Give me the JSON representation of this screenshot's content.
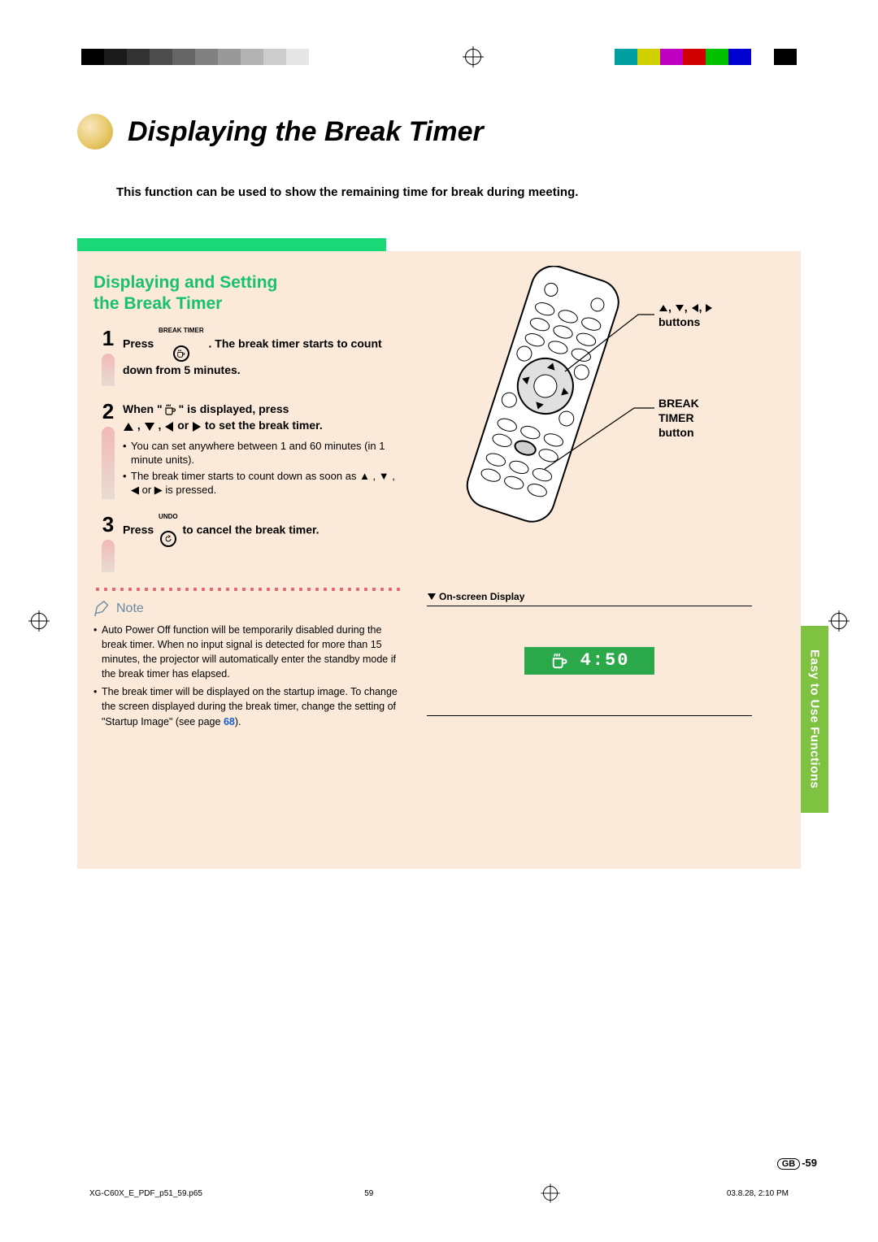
{
  "printer_marks": {
    "gray_bar_colors": [
      "#000000",
      "#1a1a1a",
      "#333333",
      "#4d4d4d",
      "#666666",
      "#808080",
      "#999999",
      "#b3b3b3",
      "#cccccc",
      "#e6e6e6",
      "#ffffff"
    ],
    "color_bar_colors": [
      "#00a0a0",
      "#d0d000",
      "#c000c0",
      "#d00000",
      "#00c000",
      "#0000d0",
      "#ffffff",
      "#000000"
    ]
  },
  "page": {
    "title": "Displaying the Break Timer",
    "intro": "This function can be used to show the remaining time for break during meeting.",
    "section_heading_line1": "Displaying and Setting",
    "section_heading_line2": "the Break Timer",
    "section_tab": "Easy to Use Functions"
  },
  "steps": {
    "s1": {
      "num": "1",
      "before": "Press ",
      "icon_label": "BREAK TIMER",
      "after": ". The break timer starts to count down from 5 minutes."
    },
    "s2": {
      "num": "2",
      "line1_a": "When \"",
      "line1_b": "\" is displayed, press",
      "line2_mid": " , ",
      "line2_or": " or ",
      "line2_end": " to set the break timer.",
      "bullets": [
        "You can set anywhere between 1 and 60 minutes (in 1 minute units).",
        "The break timer starts to count down as soon as ▲ , ▼ , ◀ or ▶ is pressed."
      ]
    },
    "s3": {
      "num": "3",
      "before": "Press ",
      "icon_label": "UNDO",
      "after": " to cancel the break timer."
    }
  },
  "note": {
    "heading": "Note",
    "items": [
      "Auto Power Off function will be temporarily disabled during the break timer. When no input signal is detected for more than 15 minutes, the projector will automatically enter the standby mode if the break timer has elapsed.",
      "The break timer will be displayed on the startup image. To change the screen displayed during the break timer, change the setting of \"Startup Image\" (see page "
    ],
    "page_ref": "68",
    "page_ref_after": ")."
  },
  "callouts": {
    "arrows_label": "buttons",
    "break_timer_label1": "BREAK TIMER",
    "break_timer_label2": "button"
  },
  "osd": {
    "label": "On-screen Display",
    "time": "4:50",
    "bg_color": "#2aa84a"
  },
  "footer": {
    "file": "XG-C60X_E_PDF_p51_59.p65",
    "page": "59",
    "date": "03.8.28, 2:10 PM"
  },
  "page_number": "-59"
}
